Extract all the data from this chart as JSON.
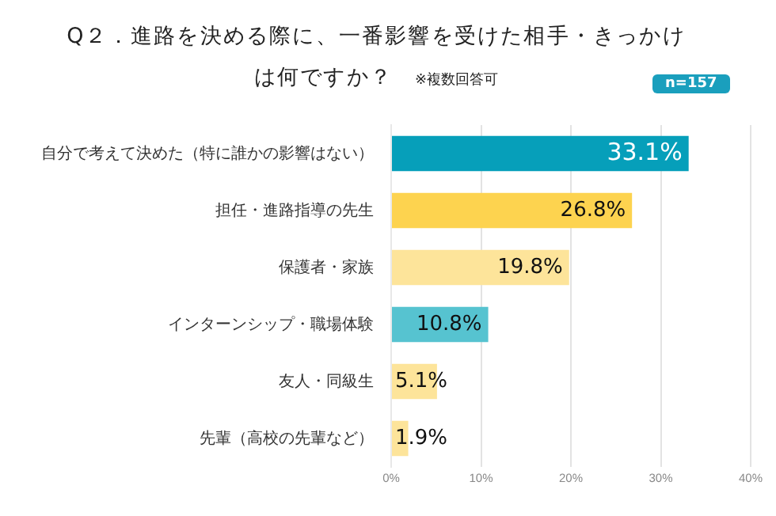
{
  "chart_data": {
    "type": "bar",
    "orientation": "horizontal",
    "title": "Q２．進路を決める際に、一番影響を受けた相手・きっかけは何ですか？",
    "subtitle": "※複数回答可",
    "annotations": [
      "n=157"
    ],
    "categories": [
      "自分で考えて決めた（特に誰かの影響はない）",
      "担任・進路指導の先生",
      "保護者・家族",
      "インターンシップ・職場体験",
      "友人・同級生",
      "先輩（高校の先輩など）"
    ],
    "values": [
      33.1,
      26.8,
      19.8,
      10.8,
      5.1,
      1.9
    ],
    "colors": [
      "#069fba",
      "#fdd34f",
      "#fde49a",
      "#56c3d0",
      "#fde49a",
      "#fde49a"
    ],
    "value_labels": [
      "33.1%",
      "26.8%",
      "19.8%",
      "10.8%",
      "5.1%",
      "1.9%"
    ],
    "xlim": [
      0,
      40
    ],
    "xticks": [
      {
        "value": 0,
        "label": "0%"
      },
      {
        "value": 10,
        "label": "10%"
      },
      {
        "value": 20,
        "label": "20%"
      },
      {
        "value": 30,
        "label": "30%"
      },
      {
        "value": 40,
        "label": "40%"
      }
    ],
    "grid": "x",
    "legend": false
  }
}
